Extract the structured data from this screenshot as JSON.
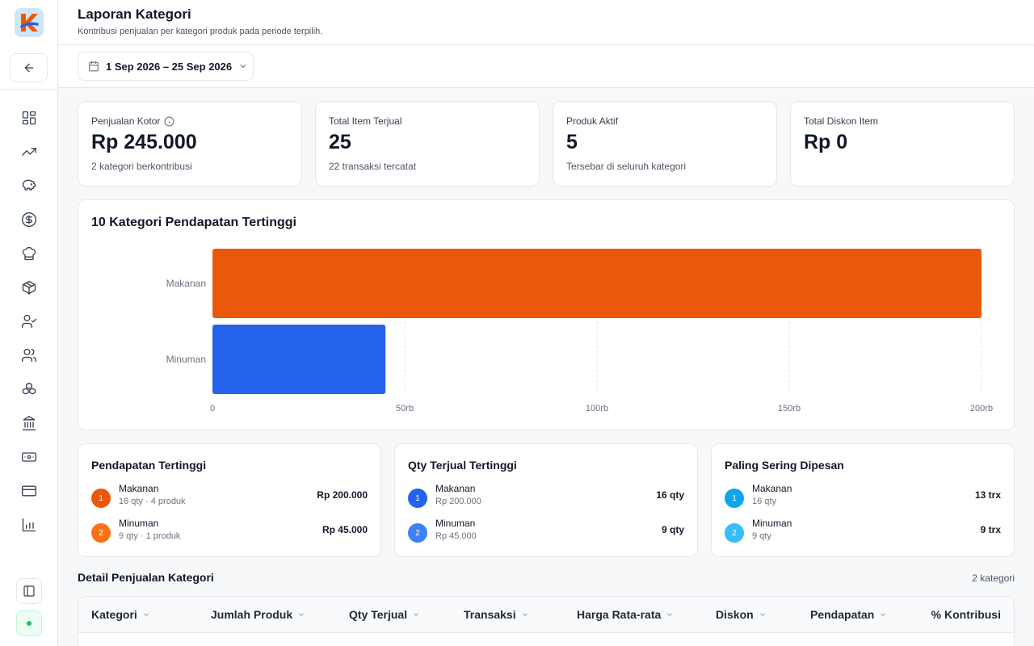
{
  "header": {
    "title": "Laporan Kategori",
    "subtitle": "Kontribusi penjualan per kategori produk pada periode terpilih."
  },
  "filter": {
    "date_range": "1 Sep 2026 – 25 Sep 2026"
  },
  "kpis": [
    {
      "label": "Penjualan Kotor",
      "value": "Rp 245.000",
      "note": "2 kategori berkontribusi"
    },
    {
      "label": "Total Item Terjual",
      "value": "25",
      "note": "22 transaksi tercatat"
    },
    {
      "label": "Produk Aktif",
      "value": "5",
      "note": "Tersebar di seluruh kategori"
    },
    {
      "label": "Total Diskon Item",
      "value": "Rp 0",
      "note": ""
    }
  ],
  "chart_data": {
    "type": "bar",
    "orientation": "horizontal",
    "title": "10 Kategori Pendapatan Tertinggi",
    "categories": [
      "Makanan",
      "Minuman"
    ],
    "values": [
      200000,
      45000
    ],
    "colors": [
      "#ea580c",
      "#2563eb"
    ],
    "xlim": [
      0,
      200000
    ],
    "ticks": [
      {
        "value": 0,
        "label": "0"
      },
      {
        "value": 50000,
        "label": "50rb"
      },
      {
        "value": 100000,
        "label": "100rb"
      },
      {
        "value": 150000,
        "label": "150rb"
      },
      {
        "value": 200000,
        "label": "200rb"
      }
    ],
    "grid": true
  },
  "rankings": [
    {
      "title": "Pendapatan Tertinggi",
      "items": [
        {
          "rank": "1",
          "name": "Makanan",
          "sub": "16 qty · 4 produk",
          "value": "Rp 200.000",
          "color": "#ea580c"
        },
        {
          "rank": "2",
          "name": "Minuman",
          "sub": "9 qty · 1 produk",
          "value": "Rp 45.000",
          "color": "#f97316"
        }
      ]
    },
    {
      "title": "Qty Terjual Tertinggi",
      "items": [
        {
          "rank": "1",
          "name": "Makanan",
          "sub": "Rp 200.000",
          "value": "16 qty",
          "color": "#2563eb"
        },
        {
          "rank": "2",
          "name": "Minuman",
          "sub": "Rp 45.000",
          "value": "9 qty",
          "color": "#3b82f6"
        }
      ]
    },
    {
      "title": "Paling Sering Dipesan",
      "items": [
        {
          "rank": "1",
          "name": "Makanan",
          "sub": "16 qty",
          "value": "13 trx",
          "color": "#0ea5e9"
        },
        {
          "rank": "2",
          "name": "Minuman",
          "sub": "9 qty",
          "value": "9 trx",
          "color": "#38bdf8"
        }
      ]
    }
  ],
  "detail": {
    "title": "Detail Penjualan Kategori",
    "count": "2 kategori",
    "columns": [
      "Kategori",
      "Jumlah Produk",
      "Qty Terjual",
      "Transaksi",
      "Harga Rata-rata",
      "Diskon",
      "Pendapatan",
      "% Kontribusi"
    ]
  },
  "sidebar": {
    "icons": [
      "dashboard-icon",
      "trending-up-icon",
      "piggy-bank-icon",
      "dollar-circle-icon",
      "chef-hat-icon",
      "package-icon",
      "user-check-icon",
      "users-icon",
      "boxes-icon",
      "bank-icon",
      "banknote-icon",
      "credit-card-icon",
      "bar-chart-icon"
    ]
  }
}
